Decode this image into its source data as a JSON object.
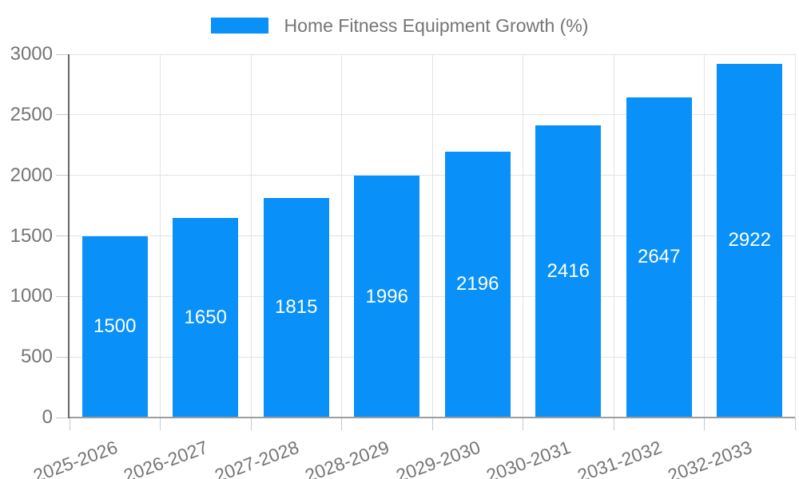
{
  "chart_data": {
    "type": "bar",
    "title": "Home Fitness Equipment Growth (%)",
    "categories": [
      "2025-2026",
      "2026-2027",
      "2027-2028",
      "2028-2029",
      "2029-2030",
      "2030-2031",
      "2031-2032",
      "2032-2033"
    ],
    "values": [
      1500,
      1650,
      1815,
      1996,
      2196,
      2416,
      2647,
      2922
    ],
    "value_labels_shown": true,
    "xlabel": "",
    "ylabel": "",
    "ylim": [
      0,
      3000
    ],
    "yticks": [
      0,
      500,
      1000,
      1500,
      2000,
      2500,
      3000
    ],
    "grid": true,
    "legend": {
      "position": "top-center",
      "entries": [
        {
          "label": "Home Fitness Equipment Growth (%)",
          "swatch": "rect"
        }
      ]
    },
    "colors": {
      "bar": "#0991f9",
      "value_text": "#ffffff",
      "axis_text": "#757575",
      "gridline": "#e3e3e3",
      "tick": "#c9c9c9",
      "y_axis_line": "#666666",
      "x_axis_line": "#9e9e9e",
      "background": "#ffffff"
    }
  }
}
